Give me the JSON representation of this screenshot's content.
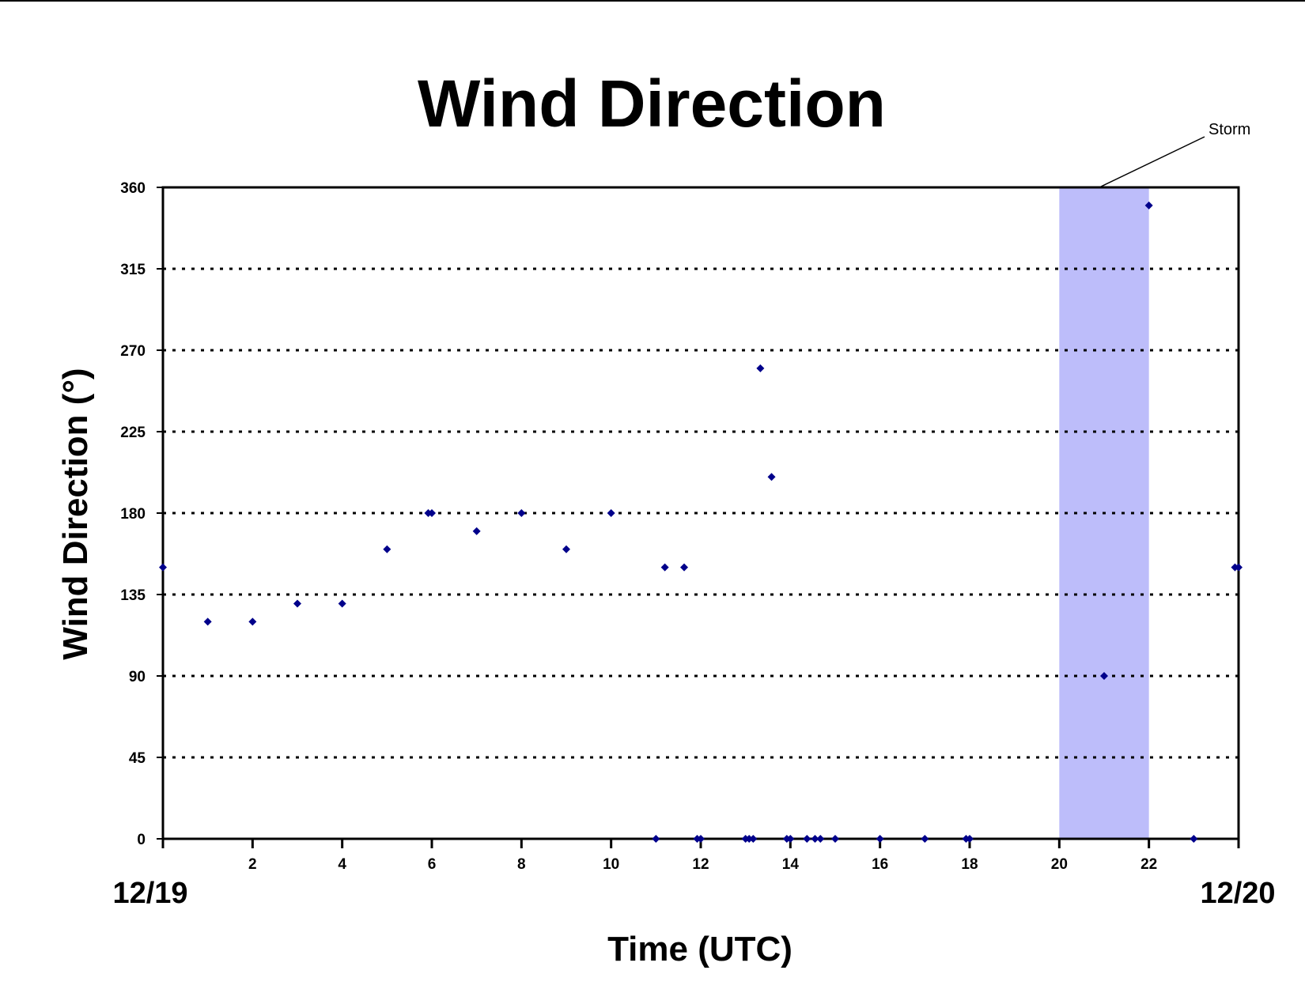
{
  "chart_data": {
    "type": "scatter",
    "title": "Wind Direction",
    "xlabel": "Time (UTC)",
    "ylabel": "Wind Direction (°)",
    "xlim": [
      0,
      24
    ],
    "ylim": [
      0,
      360
    ],
    "x_ticks": [
      0,
      2,
      4,
      6,
      8,
      10,
      12,
      14,
      16,
      18,
      20,
      22,
      24
    ],
    "x_tick_labels": [
      "",
      "2",
      "4",
      "6",
      "8",
      "10",
      "12",
      "14",
      "16",
      "18",
      "20",
      "22",
      ""
    ],
    "y_ticks": [
      0,
      45,
      90,
      135,
      180,
      225,
      270,
      315,
      360
    ],
    "y_tick_labels": [
      "0",
      "45",
      "90",
      "135",
      "180",
      "225",
      "270",
      "315",
      "360"
    ],
    "date_labels": {
      "start": "12/19",
      "end": "12/20"
    },
    "grid": "horizontal dotted",
    "marker_color": "#00008B",
    "highlight": {
      "x_start": 20,
      "x_end": 22,
      "label": "Storm",
      "color": "#BDBDFA"
    },
    "points": [
      {
        "x": 0,
        "y": 150
      },
      {
        "x": 1,
        "y": 120
      },
      {
        "x": 2,
        "y": 120
      },
      {
        "x": 3,
        "y": 130
      },
      {
        "x": 4,
        "y": 130
      },
      {
        "x": 5,
        "y": 160
      },
      {
        "x": 5.92,
        "y": 180
      },
      {
        "x": 6,
        "y": 180
      },
      {
        "x": 7,
        "y": 170
      },
      {
        "x": 8,
        "y": 180
      },
      {
        "x": 9,
        "y": 160
      },
      {
        "x": 10,
        "y": 180
      },
      {
        "x": 11,
        "y": 0
      },
      {
        "x": 11.2,
        "y": 150
      },
      {
        "x": 11.63,
        "y": 150
      },
      {
        "x": 11.92,
        "y": 0
      },
      {
        "x": 12,
        "y": 0
      },
      {
        "x": 13,
        "y": 0
      },
      {
        "x": 13.08,
        "y": 0
      },
      {
        "x": 13.17,
        "y": 0
      },
      {
        "x": 13.33,
        "y": 260
      },
      {
        "x": 13.58,
        "y": 200
      },
      {
        "x": 13.92,
        "y": 0
      },
      {
        "x": 14,
        "y": 0
      },
      {
        "x": 14.37,
        "y": 0
      },
      {
        "x": 14.55,
        "y": 0
      },
      {
        "x": 14.67,
        "y": 0
      },
      {
        "x": 15,
        "y": 0
      },
      {
        "x": 16,
        "y": 0
      },
      {
        "x": 17,
        "y": 0
      },
      {
        "x": 17.92,
        "y": 0
      },
      {
        "x": 18,
        "y": 0
      },
      {
        "x": 21,
        "y": 90
      },
      {
        "x": 22,
        "y": 350
      },
      {
        "x": 23,
        "y": 0
      },
      {
        "x": 23.92,
        "y": 150
      },
      {
        "x": 24,
        "y": 150
      }
    ]
  }
}
